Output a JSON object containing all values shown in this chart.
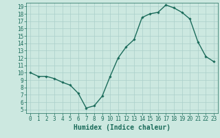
{
  "x": [
    0,
    1,
    2,
    3,
    4,
    5,
    6,
    7,
    8,
    9,
    10,
    11,
    12,
    13,
    14,
    15,
    16,
    17,
    18,
    19,
    20,
    21,
    22,
    23
  ],
  "y": [
    10.0,
    9.5,
    9.5,
    9.2,
    8.7,
    8.3,
    7.2,
    5.2,
    5.5,
    6.8,
    9.5,
    12.0,
    13.5,
    14.5,
    17.5,
    18.0,
    18.2,
    19.2,
    18.8,
    18.2,
    17.3,
    14.2,
    12.2,
    11.5
  ],
  "line_color": "#1a6b5a",
  "marker": "D",
  "marker_size": 1.8,
  "bg_color": "#cce8e0",
  "grid_color": "#aacfca",
  "tick_color": "#1a6b5a",
  "xlabel": "Humidex (Indice chaleur)",
  "xlabel_fontsize": 7,
  "xlim": [
    -0.5,
    23.5
  ],
  "ylim": [
    4.5,
    19.5
  ],
  "yticks": [
    5,
    6,
    7,
    8,
    9,
    10,
    11,
    12,
    13,
    14,
    15,
    16,
    17,
    18,
    19
  ],
  "xticks": [
    0,
    1,
    2,
    3,
    4,
    5,
    6,
    7,
    8,
    9,
    10,
    11,
    12,
    13,
    14,
    15,
    16,
    17,
    18,
    19,
    20,
    21,
    22,
    23
  ],
  "tick_fontsize": 5.5,
  "linewidth": 1.0
}
